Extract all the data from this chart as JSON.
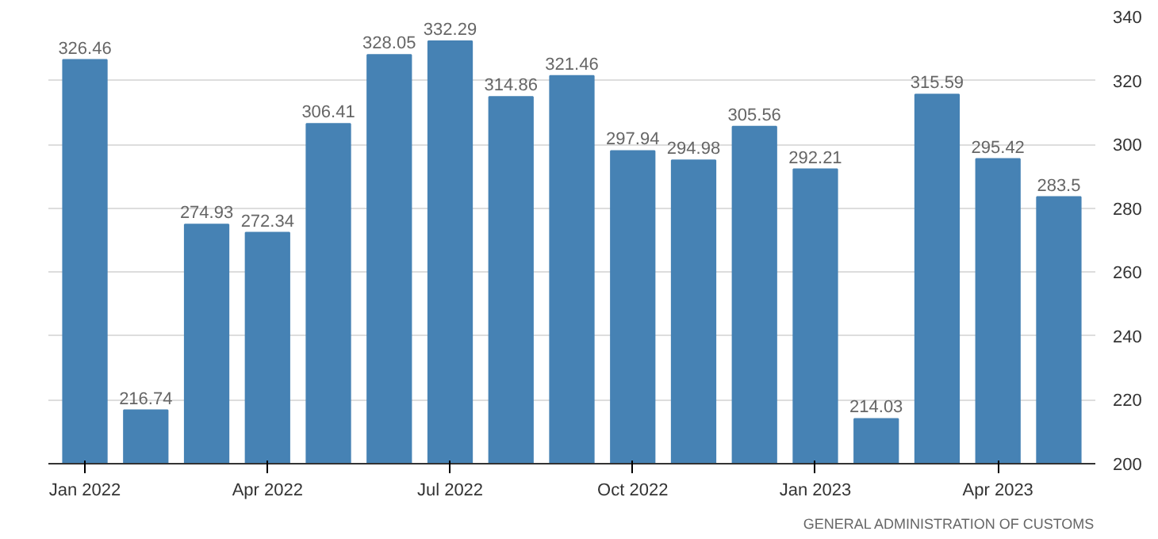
{
  "chart_data": {
    "type": "bar",
    "categories": [
      "Jan 2022",
      null,
      null,
      "Apr 2022",
      null,
      null,
      "Jul 2022",
      null,
      null,
      "Oct 2022",
      null,
      null,
      "Jan 2023",
      null,
      null,
      "Apr 2023",
      null
    ],
    "values": [
      326.46,
      216.74,
      274.93,
      272.34,
      306.41,
      328.05,
      332.29,
      314.86,
      321.46,
      297.94,
      294.98,
      305.56,
      292.21,
      214.03,
      315.59,
      295.42,
      283.5
    ],
    "color": "#4682b4",
    "ylim": [
      200,
      340
    ],
    "yticks": [
      200,
      220,
      240,
      260,
      280,
      300,
      320,
      340
    ],
    "grid": "y",
    "data_labels": true,
    "annotations": [
      "GENERAL ADMINISTRATION OF CUSTOMS"
    ]
  }
}
